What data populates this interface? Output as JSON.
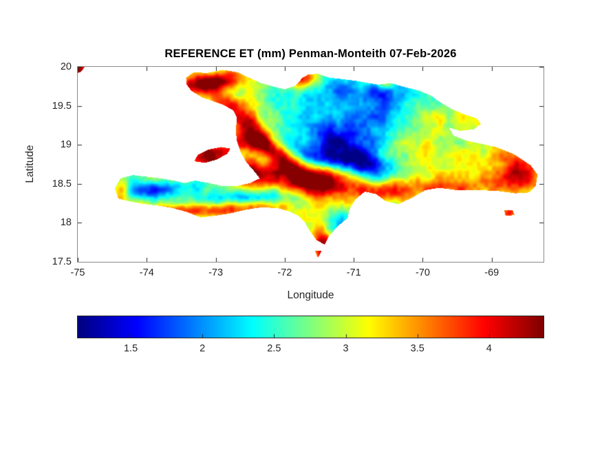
{
  "figure": {
    "background": "#ffffff",
    "text_color": "#262626"
  },
  "chart_data": {
    "type": "heatmap",
    "title": "REFERENCE ET (mm) Penman-Monteith 07-Feb-2026",
    "variable": "REFERENCE ET",
    "units": "mm",
    "method": "Penman-Monteith",
    "date": "07-Feb-2026",
    "xlabel": "Longitude",
    "ylabel": "Latitude",
    "region": "Hispaniola (Haiti and Dominican Republic)",
    "xlim": [
      -75,
      -68.25
    ],
    "ylim": [
      17.5,
      20
    ],
    "x_ticks": [
      -75,
      -74,
      -73,
      -72,
      -71,
      -70,
      -69
    ],
    "y_ticks": [
      20,
      19.5,
      19,
      18.5,
      18,
      17.5
    ],
    "colormap": "jet",
    "clim": [
      1.13,
      4.38
    ],
    "colorbar_orientation": "horizontal",
    "colorbar_ticks": [
      1.5,
      2,
      2.5,
      3,
      3.5,
      4
    ],
    "region_polygons": [
      [
        [
          -73.43,
          19.86
        ],
        [
          -73.32,
          19.93
        ],
        [
          -73.12,
          19.92
        ],
        [
          -72.9,
          19.96
        ],
        [
          -72.68,
          19.93
        ],
        [
          -72.52,
          19.86
        ],
        [
          -72.34,
          19.79
        ],
        [
          -72.18,
          19.75
        ],
        [
          -72.0,
          19.71
        ],
        [
          -71.84,
          19.76
        ],
        [
          -71.74,
          19.86
        ],
        [
          -71.66,
          19.9
        ],
        [
          -71.52,
          19.91
        ],
        [
          -71.36,
          19.86
        ],
        [
          -71.16,
          19.84
        ],
        [
          -70.96,
          19.82
        ],
        [
          -70.78,
          19.79
        ],
        [
          -70.64,
          19.77
        ],
        [
          -70.46,
          19.79
        ],
        [
          -70.26,
          19.74
        ],
        [
          -70.04,
          19.69
        ],
        [
          -69.88,
          19.63
        ],
        [
          -69.74,
          19.54
        ],
        [
          -69.58,
          19.46
        ],
        [
          -69.4,
          19.39
        ],
        [
          -69.22,
          19.34
        ],
        [
          -69.16,
          19.27
        ],
        [
          -69.26,
          19.2
        ],
        [
          -69.46,
          19.18
        ],
        [
          -69.62,
          19.22
        ],
        [
          -69.56,
          19.12
        ],
        [
          -69.36,
          19.05
        ],
        [
          -69.14,
          19.01
        ],
        [
          -68.94,
          18.97
        ],
        [
          -68.68,
          18.88
        ],
        [
          -68.44,
          18.74
        ],
        [
          -68.34,
          18.62
        ],
        [
          -68.36,
          18.48
        ],
        [
          -68.46,
          18.39
        ],
        [
          -68.66,
          18.38
        ],
        [
          -68.92,
          18.41
        ],
        [
          -69.22,
          18.42
        ],
        [
          -69.52,
          18.42
        ],
        [
          -69.76,
          18.45
        ],
        [
          -69.96,
          18.42
        ],
        [
          -70.16,
          18.32
        ],
        [
          -70.36,
          18.24
        ],
        [
          -70.54,
          18.28
        ],
        [
          -70.68,
          18.37
        ],
        [
          -70.84,
          18.4
        ],
        [
          -70.98,
          18.3
        ],
        [
          -71.06,
          18.18
        ],
        [
          -71.09,
          18.06
        ],
        [
          -71.24,
          17.95
        ],
        [
          -71.36,
          17.83
        ],
        [
          -71.42,
          17.72
        ],
        [
          -71.54,
          17.78
        ],
        [
          -71.64,
          17.9
        ],
        [
          -71.71,
          18.01
        ],
        [
          -71.8,
          18.09
        ],
        [
          -71.94,
          18.15
        ],
        [
          -72.1,
          18.19
        ],
        [
          -72.34,
          18.2
        ],
        [
          -72.56,
          18.17
        ],
        [
          -72.8,
          18.12
        ],
        [
          -73.02,
          18.09
        ],
        [
          -73.22,
          18.07
        ],
        [
          -73.42,
          18.14
        ],
        [
          -73.62,
          18.19
        ],
        [
          -73.82,
          18.22
        ],
        [
          -74.02,
          18.24
        ],
        [
          -74.22,
          18.27
        ],
        [
          -74.41,
          18.31
        ],
        [
          -74.46,
          18.44
        ],
        [
          -74.38,
          18.57
        ],
        [
          -74.2,
          18.61
        ],
        [
          -74.0,
          18.59
        ],
        [
          -73.8,
          18.57
        ],
        [
          -73.6,
          18.54
        ],
        [
          -73.46,
          18.51
        ],
        [
          -73.3,
          18.54
        ],
        [
          -73.1,
          18.51
        ],
        [
          -72.9,
          18.47
        ],
        [
          -72.7,
          18.47
        ],
        [
          -72.5,
          18.51
        ],
        [
          -72.36,
          18.57
        ],
        [
          -72.45,
          18.67
        ],
        [
          -72.55,
          18.77
        ],
        [
          -72.64,
          18.91
        ],
        [
          -72.69,
          19.04
        ],
        [
          -72.71,
          19.19
        ],
        [
          -72.69,
          19.34
        ],
        [
          -72.74,
          19.44
        ],
        [
          -72.88,
          19.51
        ],
        [
          -73.04,
          19.56
        ],
        [
          -73.2,
          19.61
        ],
        [
          -73.35,
          19.69
        ],
        [
          -73.42,
          19.77
        ]
      ],
      [
        [
          -73.31,
          18.79
        ],
        [
          -73.16,
          18.77
        ],
        [
          -72.99,
          18.81
        ],
        [
          -72.83,
          18.89
        ],
        [
          -72.79,
          18.95
        ],
        [
          -72.92,
          18.97
        ],
        [
          -73.1,
          18.94
        ],
        [
          -73.26,
          18.87
        ]
      ],
      [
        [
          -68.82,
          18.16
        ],
        [
          -68.7,
          18.16
        ],
        [
          -68.67,
          18.1
        ],
        [
          -68.8,
          18.09
        ]
      ],
      [
        [
          -71.56,
          17.64
        ],
        [
          -71.47,
          17.64
        ],
        [
          -71.52,
          17.55
        ]
      ],
      [
        [
          -75.0,
          20.0
        ],
        [
          -74.9,
          20.0
        ],
        [
          -74.95,
          19.94
        ],
        [
          -75.0,
          19.92
        ]
      ]
    ],
    "field": {
      "base": 2.8,
      "noise": [
        {
          "scale": 0.5,
          "amp": 0.28,
          "seed": 1
        },
        {
          "scale": 0.16,
          "amp": 0.22,
          "seed": 2
        },
        {
          "scale": 0.055,
          "amp": 0.13,
          "seed": 3
        }
      ],
      "features": [
        {
          "lon": -73.05,
          "lat": 19.8,
          "sx": 0.42,
          "sy": 0.09,
          "rot": 8,
          "amp": 1.5
        },
        {
          "lon": -75.0,
          "lat": 19.96,
          "sx": 0.1,
          "sy": 0.07,
          "rot": 0,
          "amp": 1.5
        },
        {
          "lon": -72.45,
          "lat": 19.18,
          "sx": 0.55,
          "sy": 0.1,
          "rot": -40,
          "amp": 1.35
        },
        {
          "lon": -72.25,
          "lat": 18.93,
          "sx": 0.45,
          "sy": 0.08,
          "rot": -20,
          "amp": 1.0
        },
        {
          "lon": -71.6,
          "lat": 18.55,
          "sx": 0.85,
          "sy": 0.14,
          "rot": -8,
          "amp": 1.65
        },
        {
          "lon": -71.5,
          "lat": 18.83,
          "sx": 0.65,
          "sy": 0.1,
          "rot": -5,
          "amp": -1.0
        },
        {
          "lon": -70.9,
          "lat": 19.25,
          "sx": 0.6,
          "sy": 0.3,
          "rot": -20,
          "amp": -0.95
        },
        {
          "lon": -71.25,
          "lat": 18.98,
          "sx": 0.45,
          "sy": 0.16,
          "rot": -30,
          "amp": -0.8
        },
        {
          "lon": -70.55,
          "lat": 19.7,
          "sx": 0.9,
          "sy": 0.16,
          "rot": 0,
          "amp": -0.65
        },
        {
          "lon": -69.25,
          "lat": 18.8,
          "sx": 0.8,
          "sy": 0.38,
          "rot": 0,
          "amp": 0.5
        },
        {
          "lon": -68.6,
          "lat": 18.6,
          "sx": 0.22,
          "sy": 0.2,
          "rot": 0,
          "amp": 1.3
        },
        {
          "lon": -73.95,
          "lat": 18.42,
          "sx": 0.45,
          "sy": 0.08,
          "rot": 3,
          "amp": -1.05
        },
        {
          "lon": -73.35,
          "lat": 18.15,
          "sx": 0.85,
          "sy": 0.07,
          "rot": 2,
          "amp": 1.2
        },
        {
          "lon": -74.38,
          "lat": 18.4,
          "sx": 0.1,
          "sy": 0.12,
          "rot": 0,
          "amp": 1.25
        },
        {
          "lon": -73.05,
          "lat": 18.88,
          "sx": 0.28,
          "sy": 0.11,
          "rot": 10,
          "amp": 1.35
        },
        {
          "lon": -72.52,
          "lat": 18.6,
          "sx": 0.16,
          "sy": 0.1,
          "rot": 0,
          "amp": 0.8
        },
        {
          "lon": -72.5,
          "lat": 18.33,
          "sx": 0.4,
          "sy": 0.06,
          "rot": 0,
          "amp": -0.8
        },
        {
          "lon": -71.18,
          "lat": 18.02,
          "sx": 0.14,
          "sy": 0.13,
          "rot": 0,
          "amp": -0.7
        },
        {
          "lon": -71.45,
          "lat": 17.72,
          "sx": 0.1,
          "sy": 0.18,
          "rot": 15,
          "amp": 1.3
        },
        {
          "lon": -69.85,
          "lat": 18.44,
          "sx": 0.55,
          "sy": 0.09,
          "rot": 0,
          "amp": 0.55
        },
        {
          "lon": -71.78,
          "lat": 19.85,
          "sx": 0.16,
          "sy": 0.08,
          "rot": 0,
          "amp": 1.2
        },
        {
          "lon": -70.3,
          "lat": 18.95,
          "sx": 0.3,
          "sy": 0.2,
          "rot": 0,
          "amp": 0.45
        },
        {
          "lon": -70.62,
          "lat": 18.62,
          "sx": 0.2,
          "sy": 0.12,
          "rot": 0,
          "amp": -0.7
        },
        {
          "lon": -70.55,
          "lat": 19.78,
          "sx": 0.07,
          "sy": 0.05,
          "rot": 0,
          "amp": 0.9
        },
        {
          "lon": -68.75,
          "lat": 18.12,
          "sx": 0.1,
          "sy": 0.06,
          "rot": 0,
          "amp": 1.1
        }
      ]
    }
  }
}
